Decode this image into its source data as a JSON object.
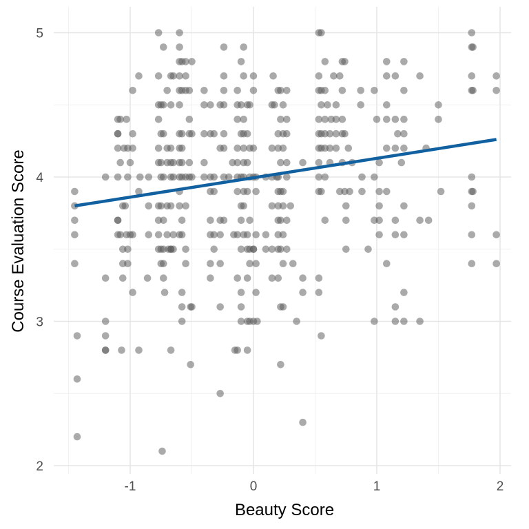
{
  "chart_data": {
    "type": "scatter",
    "xlabel": "Beauty Score",
    "ylabel": "Course Evaluation Score",
    "xlim": [
      -1.5,
      2.0
    ],
    "ylim": [
      2.0,
      5.0
    ],
    "x_ticks": [
      -1,
      0,
      1,
      2
    ],
    "y_ticks": [
      2,
      3,
      4,
      5
    ],
    "x_tick_labels": [
      "-1",
      "0",
      "1",
      "2"
    ],
    "y_tick_labels": [
      "2",
      "3",
      "4",
      "5"
    ],
    "grid": true,
    "legend": "none",
    "point_color": "#555555",
    "point_opacity": 0.5,
    "line_color": "#1160a0",
    "trend_line": {
      "x": [
        -1.45,
        1.97
      ],
      "y": [
        3.8,
        4.26
      ]
    },
    "points": [
      [
        -1.45,
        3.9
      ],
      [
        -1.45,
        3.8
      ],
      [
        -1.45,
        3.7
      ],
      [
        -1.45,
        3.6
      ],
      [
        -1.45,
        3.4
      ],
      [
        -1.43,
        2.9
      ],
      [
        -1.43,
        2.6
      ],
      [
        -1.43,
        2.2
      ],
      [
        -1.2,
        4.0
      ],
      [
        -1.2,
        3.3
      ],
      [
        -1.2,
        3.0
      ],
      [
        -1.2,
        2.9
      ],
      [
        -1.2,
        2.8
      ],
      [
        -1.2,
        2.8
      ],
      [
        -1.1,
        4.4
      ],
      [
        -1.1,
        4.3
      ],
      [
        -1.1,
        4.3
      ],
      [
        -1.1,
        4.2
      ],
      [
        -1.1,
        4.0
      ],
      [
        -1.1,
        3.7
      ],
      [
        -1.1,
        3.7
      ],
      [
        -1.1,
        3.6
      ],
      [
        -1.08,
        4.4
      ],
      [
        -1.08,
        4.1
      ],
      [
        -1.08,
        3.6
      ],
      [
        -1.07,
        2.8
      ],
      [
        -1.06,
        3.8
      ],
      [
        -1.06,
        3.5
      ],
      [
        -1.06,
        3.4
      ],
      [
        -1.06,
        3.3
      ],
      [
        -1.05,
        4.2
      ],
      [
        -1.04,
        3.8
      ],
      [
        -1.03,
        4.4
      ],
      [
        -1.03,
        3.6
      ],
      [
        -1.02,
        4.2
      ],
      [
        -1.02,
        4.0
      ],
      [
        -1.02,
        3.5
      ],
      [
        -1.02,
        3.4
      ],
      [
        -1.0,
        4.1
      ],
      [
        -1.0,
        3.6
      ],
      [
        -0.98,
        4.6
      ],
      [
        -0.98,
        4.3
      ],
      [
        -0.98,
        4.2
      ],
      [
        -0.98,
        3.6
      ],
      [
        -0.98,
        3.2
      ],
      [
        -0.93,
        4.7
      ],
      [
        -0.93,
        3.9
      ],
      [
        -0.92,
        4.0
      ],
      [
        -0.93,
        2.8
      ],
      [
        -0.86,
        3.3
      ],
      [
        -0.85,
        4.0
      ],
      [
        -0.85,
        3.8
      ],
      [
        -0.85,
        3.6
      ],
      [
        -0.77,
        5.0
      ],
      [
        -0.77,
        4.7
      ],
      [
        -0.77,
        4.5
      ],
      [
        -0.77,
        4.4
      ],
      [
        -0.77,
        4.2
      ],
      [
        -0.77,
        4.1
      ],
      [
        -0.77,
        3.8
      ],
      [
        -0.77,
        3.7
      ],
      [
        -0.77,
        3.6
      ],
      [
        -0.77,
        3.5
      ],
      [
        -0.75,
        4.5
      ],
      [
        -0.75,
        4.3
      ],
      [
        -0.75,
        4.1
      ],
      [
        -0.75,
        4.0
      ],
      [
        -0.75,
        3.8
      ],
      [
        -0.75,
        3.5
      ],
      [
        -0.75,
        3.4
      ],
      [
        -0.74,
        2.1
      ],
      [
        -0.73,
        4.9
      ],
      [
        -0.73,
        4.5
      ],
      [
        -0.73,
        4.3
      ],
      [
        -0.73,
        4.0
      ],
      [
        -0.73,
        3.7
      ],
      [
        -0.73,
        3.5
      ],
      [
        -0.73,
        3.4
      ],
      [
        -0.73,
        3.3
      ],
      [
        -0.72,
        3.2
      ],
      [
        -0.7,
        4.6
      ],
      [
        -0.7,
        4.2
      ],
      [
        -0.7,
        4.1
      ],
      [
        -0.7,
        3.8
      ],
      [
        -0.7,
        3.6
      ],
      [
        -0.69,
        3.5
      ],
      [
        -0.67,
        4.7
      ],
      [
        -0.67,
        4.5
      ],
      [
        -0.67,
        4.2
      ],
      [
        -0.67,
        4.1
      ],
      [
        -0.67,
        4.0
      ],
      [
        -0.67,
        3.8
      ],
      [
        -0.67,
        3.5
      ],
      [
        -0.67,
        3.5
      ],
      [
        -0.67,
        2.8
      ],
      [
        -0.65,
        4.7
      ],
      [
        -0.65,
        4.1
      ],
      [
        -0.65,
        4.0
      ],
      [
        -0.65,
        3.6
      ],
      [
        -0.65,
        3.5
      ],
      [
        -0.6,
        5.0
      ],
      [
        -0.6,
        4.9
      ],
      [
        -0.6,
        4.8
      ],
      [
        -0.6,
        4.7
      ],
      [
        -0.6,
        4.6
      ],
      [
        -0.6,
        4.5
      ],
      [
        -0.6,
        4.3
      ],
      [
        -0.6,
        4.2
      ],
      [
        -0.6,
        4.1
      ],
      [
        -0.6,
        4.0
      ],
      [
        -0.6,
        3.9
      ],
      [
        -0.6,
        3.8
      ],
      [
        -0.6,
        3.6
      ],
      [
        -0.58,
        4.8
      ],
      [
        -0.58,
        4.6
      ],
      [
        -0.58,
        4.3
      ],
      [
        -0.58,
        4.2
      ],
      [
        -0.58,
        4.1
      ],
      [
        -0.58,
        4.0
      ],
      [
        -0.58,
        3.7
      ],
      [
        -0.58,
        3.6
      ],
      [
        -0.58,
        3.2
      ],
      [
        -0.58,
        3.1
      ],
      [
        -0.58,
        3.0
      ],
      [
        -0.55,
        4.8
      ],
      [
        -0.55,
        4.7
      ],
      [
        -0.55,
        4.6
      ],
      [
        -0.55,
        4.0
      ],
      [
        -0.55,
        3.8
      ],
      [
        -0.55,
        3.5
      ],
      [
        -0.55,
        3.4
      ],
      [
        -0.52,
        4.6
      ],
      [
        -0.52,
        4.4
      ],
      [
        -0.52,
        4.3
      ],
      [
        -0.52,
        4.1
      ],
      [
        -0.52,
        4.0
      ],
      [
        -0.51,
        3.1
      ],
      [
        -0.51,
        2.7
      ],
      [
        -0.5,
        4.8
      ],
      [
        -0.5,
        4.3
      ],
      [
        -0.5,
        4.0
      ],
      [
        -0.5,
        3.1
      ],
      [
        -0.4,
        4.6
      ],
      [
        -0.4,
        4.5
      ],
      [
        -0.4,
        4.3
      ],
      [
        -0.4,
        4.1
      ],
      [
        -0.4,
        4.0
      ],
      [
        -0.35,
        4.5
      ],
      [
        -0.35,
        4.3
      ],
      [
        -0.35,
        4.0
      ],
      [
        -0.35,
        3.9
      ],
      [
        -0.35,
        3.7
      ],
      [
        -0.35,
        3.6
      ],
      [
        -0.35,
        3.4
      ],
      [
        -0.35,
        3.3
      ],
      [
        -0.32,
        4.3
      ],
      [
        -0.32,
        4.0
      ],
      [
        -0.32,
        3.9
      ],
      [
        -0.32,
        3.6
      ],
      [
        -0.32,
        3.5
      ],
      [
        -0.27,
        4.5
      ],
      [
        -0.27,
        4.2
      ],
      [
        -0.27,
        3.7
      ],
      [
        -0.27,
        3.6
      ],
      [
        -0.27,
        3.4
      ],
      [
        -0.27,
        3.1
      ],
      [
        -0.27,
        2.5
      ],
      [
        -0.24,
        4.9
      ],
      [
        -0.24,
        4.7
      ],
      [
        -0.24,
        4.6
      ],
      [
        -0.24,
        4.5
      ],
      [
        -0.24,
        4.3
      ],
      [
        -0.24,
        4.2
      ],
      [
        -0.24,
        4.0
      ],
      [
        -0.24,
        3.7
      ],
      [
        -0.2,
        4.0
      ],
      [
        -0.17,
        4.1
      ],
      [
        -0.16,
        3.6
      ],
      [
        -0.15,
        2.8
      ],
      [
        -0.13,
        4.6
      ],
      [
        -0.13,
        4.5
      ],
      [
        -0.13,
        4.4
      ],
      [
        -0.13,
        4.2
      ],
      [
        -0.13,
        4.1
      ],
      [
        -0.13,
        4.0
      ],
      [
        -0.13,
        3.9
      ],
      [
        -0.13,
        3.6
      ],
      [
        -0.13,
        3.3
      ],
      [
        -0.13,
        2.8
      ],
      [
        -0.1,
        4.8
      ],
      [
        -0.1,
        4.5
      ],
      [
        -0.1,
        4.3
      ],
      [
        -0.1,
        4.0
      ],
      [
        -0.1,
        3.8
      ],
      [
        -0.1,
        3.7
      ],
      [
        -0.1,
        3.5
      ],
      [
        -0.1,
        3.2
      ],
      [
        -0.1,
        3.1
      ],
      [
        -0.1,
        3.0
      ],
      [
        -0.08,
        4.9
      ],
      [
        -0.08,
        4.7
      ],
      [
        -0.08,
        4.4
      ],
      [
        -0.08,
        4.3
      ],
      [
        -0.08,
        4.2
      ],
      [
        -0.08,
        4.1
      ],
      [
        -0.08,
        4.0
      ],
      [
        -0.08,
        3.9
      ],
      [
        -0.08,
        3.8
      ],
      [
        -0.08,
        3.6
      ],
      [
        -0.05,
        4.5
      ],
      [
        -0.05,
        4.3
      ],
      [
        -0.05,
        4.1
      ],
      [
        -0.05,
        3.9
      ],
      [
        -0.05,
        3.6
      ],
      [
        -0.05,
        3.5
      ],
      [
        -0.05,
        3.3
      ],
      [
        -0.05,
        3.0
      ],
      [
        -0.05,
        2.8
      ],
      [
        -0.03,
        4.5
      ],
      [
        -0.03,
        4.2
      ],
      [
        -0.03,
        4.0
      ],
      [
        -0.03,
        3.7
      ],
      [
        -0.03,
        3.5
      ],
      [
        -0.03,
        3.4
      ],
      [
        -0.03,
        3.0
      ],
      [
        0.0,
        4.7
      ],
      [
        0.0,
        4.6
      ],
      [
        0.0,
        4.2
      ],
      [
        0.0,
        4.0
      ],
      [
        0.0,
        3.5
      ],
      [
        0.0,
        3.5
      ],
      [
        0.0,
        3.0
      ],
      [
        0.02,
        4.0
      ],
      [
        0.02,
        3.9
      ],
      [
        0.02,
        3.6
      ],
      [
        0.02,
        3.4
      ],
      [
        0.02,
        3.2
      ],
      [
        0.03,
        3.0
      ],
      [
        0.1,
        4.0
      ],
      [
        0.1,
        3.6
      ],
      [
        0.1,
        3.5
      ],
      [
        0.15,
        4.5
      ],
      [
        0.15,
        4.2
      ],
      [
        0.15,
        4.0
      ],
      [
        0.15,
        3.8
      ],
      [
        0.15,
        3.5
      ],
      [
        0.15,
        3.3
      ],
      [
        0.16,
        4.7
      ],
      [
        0.17,
        4.5
      ],
      [
        0.19,
        4.0
      ],
      [
        0.2,
        3.5
      ],
      [
        0.2,
        4.6
      ],
      [
        0.2,
        4.3
      ],
      [
        0.2,
        4.2
      ],
      [
        0.2,
        4.0
      ],
      [
        0.2,
        3.9
      ],
      [
        0.2,
        3.8
      ],
      [
        0.2,
        3.7
      ],
      [
        0.2,
        3.6
      ],
      [
        0.2,
        3.3
      ],
      [
        0.22,
        4.6
      ],
      [
        0.22,
        4.4
      ],
      [
        0.22,
        4.1
      ],
      [
        0.22,
        3.9
      ],
      [
        0.22,
        3.7
      ],
      [
        0.22,
        3.5
      ],
      [
        0.22,
        3.1
      ],
      [
        0.22,
        2.7
      ],
      [
        0.24,
        4.5
      ],
      [
        0.24,
        4.3
      ],
      [
        0.24,
        4.2
      ],
      [
        0.24,
        3.9
      ],
      [
        0.24,
        3.8
      ],
      [
        0.24,
        3.6
      ],
      [
        0.24,
        3.4
      ],
      [
        0.24,
        3.1
      ],
      [
        0.27,
        4.6
      ],
      [
        0.27,
        4.4
      ],
      [
        0.27,
        4.3
      ],
      [
        0.27,
        4.1
      ],
      [
        0.27,
        4.0
      ],
      [
        0.27,
        3.7
      ],
      [
        0.27,
        3.5
      ],
      [
        0.3,
        3.8
      ],
      [
        0.32,
        3.4
      ],
      [
        0.35,
        3.0
      ],
      [
        0.4,
        4.1
      ],
      [
        0.4,
        3.3
      ],
      [
        0.4,
        3.2
      ],
      [
        0.4,
        2.3
      ],
      [
        0.53,
        5.0
      ],
      [
        0.53,
        4.7
      ],
      [
        0.53,
        4.6
      ],
      [
        0.53,
        4.4
      ],
      [
        0.53,
        4.3
      ],
      [
        0.53,
        4.2
      ],
      [
        0.53,
        4.1
      ],
      [
        0.53,
        4.0
      ],
      [
        0.53,
        3.9
      ],
      [
        0.53,
        3.3
      ],
      [
        0.53,
        3.2
      ],
      [
        0.55,
        5.0
      ],
      [
        0.55,
        4.6
      ],
      [
        0.55,
        4.5
      ],
      [
        0.55,
        4.3
      ],
      [
        0.55,
        4.2
      ],
      [
        0.55,
        3.9
      ],
      [
        0.55,
        2.9
      ],
      [
        0.58,
        4.8
      ],
      [
        0.58,
        4.6
      ],
      [
        0.58,
        4.4
      ],
      [
        0.58,
        4.3
      ],
      [
        0.58,
        4.2
      ],
      [
        0.58,
        4.0
      ],
      [
        0.58,
        3.7
      ],
      [
        0.6,
        4.5
      ],
      [
        0.62,
        4.3
      ],
      [
        0.62,
        4.2
      ],
      [
        0.62,
        4.1
      ],
      [
        0.63,
        4.4
      ],
      [
        0.65,
        4.7
      ],
      [
        0.67,
        4.5
      ],
      [
        0.67,
        4.4
      ],
      [
        0.67,
        4.3
      ],
      [
        0.67,
        4.2
      ],
      [
        0.7,
        4.7
      ],
      [
        0.7,
        3.9
      ],
      [
        0.72,
        4.8
      ],
      [
        0.72,
        4.6
      ],
      [
        0.72,
        4.4
      ],
      [
        0.72,
        4.3
      ],
      [
        0.72,
        4.1
      ],
      [
        0.74,
        4.8
      ],
      [
        0.74,
        4.3
      ],
      [
        0.74,
        3.9
      ],
      [
        0.75,
        3.8
      ],
      [
        0.75,
        3.5
      ],
      [
        0.75,
        3.7
      ],
      [
        0.77,
        4.2
      ],
      [
        0.78,
        3.9
      ],
      [
        0.8,
        4.1
      ],
      [
        0.88,
        4.0
      ],
      [
        0.88,
        3.9
      ],
      [
        0.87,
        4.6
      ],
      [
        0.87,
        4.5
      ],
      [
        0.93,
        3.5
      ],
      [
        0.98,
        4.6
      ],
      [
        0.98,
        4.0
      ],
      [
        0.98,
        3.7
      ],
      [
        0.98,
        3.0
      ],
      [
        1.0,
        4.4
      ],
      [
        1.02,
        4.1
      ],
      [
        1.02,
        3.9
      ],
      [
        1.02,
        3.8
      ],
      [
        1.02,
        3.7
      ],
      [
        1.02,
        3.6
      ],
      [
        1.08,
        4.8
      ],
      [
        1.08,
        4.7
      ],
      [
        1.08,
        4.5
      ],
      [
        1.08,
        4.4
      ],
      [
        1.08,
        4.2
      ],
      [
        1.08,
        3.9
      ],
      [
        1.08,
        3.4
      ],
      [
        1.15,
        4.7
      ],
      [
        1.15,
        4.4
      ],
      [
        1.15,
        4.2
      ],
      [
        1.15,
        3.7
      ],
      [
        1.15,
        3.6
      ],
      [
        1.15,
        3.1
      ],
      [
        1.15,
        3.0
      ],
      [
        1.17,
        4.3
      ],
      [
        1.2,
        4.1
      ],
      [
        1.22,
        4.8
      ],
      [
        1.22,
        4.6
      ],
      [
        1.22,
        4.4
      ],
      [
        1.22,
        4.3
      ],
      [
        1.22,
        4.2
      ],
      [
        1.22,
        3.8
      ],
      [
        1.22,
        3.6
      ],
      [
        1.22,
        3.2
      ],
      [
        1.22,
        3.0
      ],
      [
        1.35,
        4.7
      ],
      [
        1.35,
        3.7
      ],
      [
        1.35,
        3.0
      ],
      [
        1.4,
        4.2
      ],
      [
        1.42,
        3.7
      ],
      [
        1.5,
        4.5
      ],
      [
        1.5,
        4.4
      ],
      [
        1.52,
        3.9
      ],
      [
        1.77,
        5.0
      ],
      [
        1.77,
        4.9
      ],
      [
        1.77,
        4.7
      ],
      [
        1.77,
        4.6
      ],
      [
        1.77,
        4.0
      ],
      [
        1.77,
        3.9
      ],
      [
        1.77,
        3.8
      ],
      [
        1.77,
        3.6
      ],
      [
        1.77,
        3.4
      ],
      [
        1.78,
        4.9
      ],
      [
        1.78,
        4.6
      ],
      [
        1.78,
        3.9
      ],
      [
        1.97,
        4.7
      ],
      [
        1.97,
        4.6
      ],
      [
        1.97,
        3.6
      ],
      [
        1.97,
        3.4
      ]
    ]
  }
}
